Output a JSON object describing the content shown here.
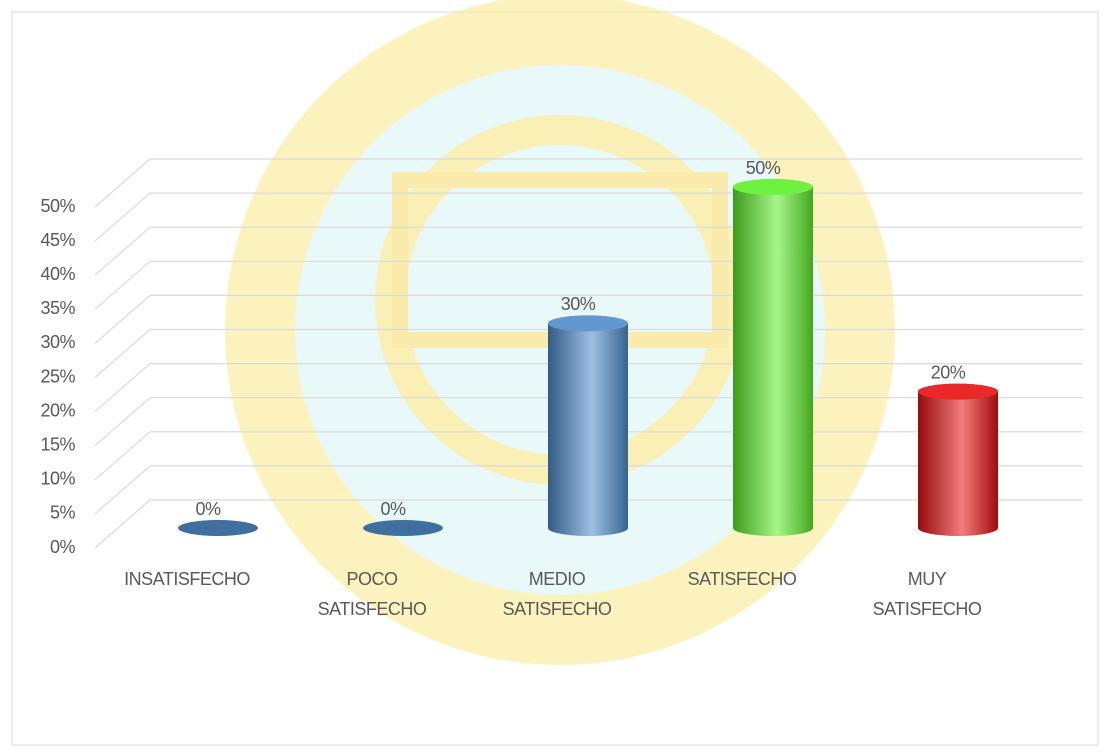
{
  "chart_data": {
    "type": "bar",
    "categories": [
      "INSATISFECHO",
      "POCO SATISFECHO",
      "MEDIO SATISFECHO",
      "SATISFECHO",
      "MUY SATISFECHO"
    ],
    "values": [
      0,
      0,
      30,
      50,
      20
    ],
    "value_labels": [
      "0%",
      "0%",
      "30%",
      "50%",
      "20%"
    ],
    "colors": [
      "#3f6f9f",
      "#3f6f9f",
      "#4f8ccc",
      "#5fef2a",
      "#e81010"
    ],
    "ylim": [
      0,
      50
    ],
    "yticks": [
      {
        "value": 0,
        "label": "0%"
      },
      {
        "value": 5,
        "label": "5%"
      },
      {
        "value": 10,
        "label": "10%"
      },
      {
        "value": 15,
        "label": "15%"
      },
      {
        "value": 20,
        "label": "20%"
      },
      {
        "value": 25,
        "label": "25%"
      },
      {
        "value": 30,
        "label": "30%"
      },
      {
        "value": 35,
        "label": "35%"
      },
      {
        "value": 40,
        "label": "40%"
      },
      {
        "value": 45,
        "label": "45%"
      },
      {
        "value": 50,
        "label": "50%"
      }
    ],
    "grid": true
  }
}
